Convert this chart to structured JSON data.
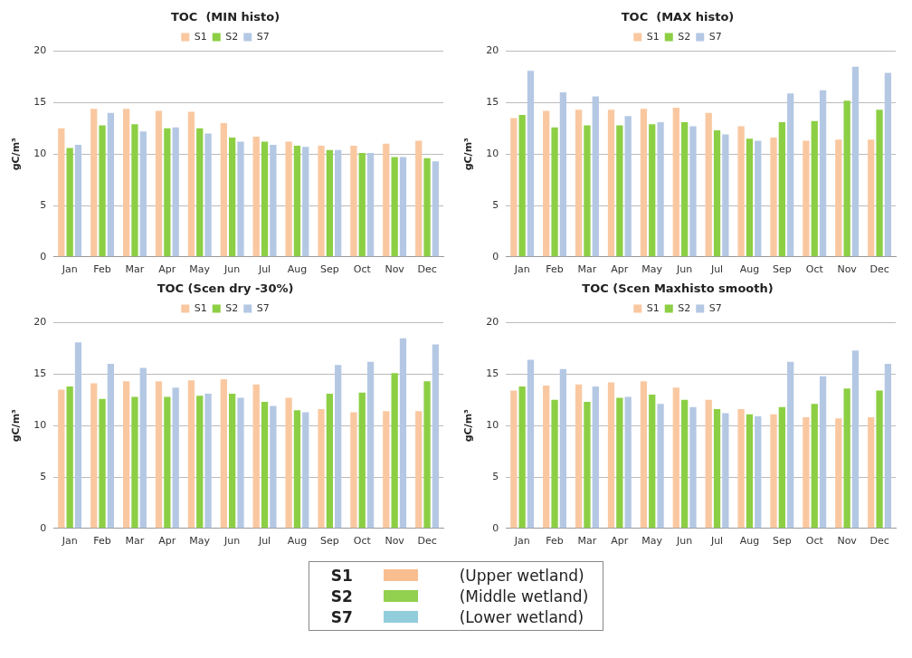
{
  "chart_data": [
    {
      "type": "bar",
      "title": "TOC  (MIN histo)",
      "ylabel": "gC/m³",
      "categories": [
        "Jan",
        "Feb",
        "Mar",
        "Apr",
        "May",
        "Jun",
        "Jul",
        "Aug",
        "Sep",
        "Oct",
        "Nov",
        "Dec"
      ],
      "ylim": [
        0,
        20
      ],
      "yticks": [
        0,
        5,
        10,
        15,
        20
      ],
      "grid": "y",
      "legend": "top",
      "series": [
        {
          "name": "S1",
          "color": "#fac8a0",
          "values": [
            12.5,
            14.4,
            14.4,
            14.2,
            14.1,
            13.0,
            11.7,
            11.2,
            10.8,
            10.8,
            11.0,
            11.3
          ]
        },
        {
          "name": "S2",
          "color": "#8ccf44",
          "values": [
            10.6,
            12.8,
            12.9,
            12.5,
            12.5,
            11.6,
            11.2,
            10.8,
            10.4,
            10.1,
            9.7,
            9.6
          ]
        },
        {
          "name": "S7",
          "color": "#b4c8e4",
          "values": [
            10.9,
            14.0,
            12.2,
            12.6,
            12.0,
            11.2,
            10.9,
            10.7,
            10.4,
            10.1,
            9.7,
            9.3
          ]
        }
      ]
    },
    {
      "type": "bar",
      "title": "TOC  (MAX histo)",
      "ylabel": "gC/m³",
      "categories": [
        "Jan",
        "Feb",
        "Mar",
        "Apr",
        "May",
        "Jun",
        "Jul",
        "Aug",
        "Sep",
        "Oct",
        "Nov",
        "Dec"
      ],
      "ylim": [
        0,
        20
      ],
      "yticks": [
        0,
        5,
        10,
        15,
        20
      ],
      "grid": "y",
      "legend": "top",
      "series": [
        {
          "name": "S1",
          "color": "#fac8a0",
          "values": [
            13.5,
            14.2,
            14.3,
            14.3,
            14.4,
            14.5,
            14.0,
            12.7,
            11.6,
            11.3,
            11.4,
            11.4
          ]
        },
        {
          "name": "S2",
          "color": "#8ccf44",
          "values": [
            13.8,
            12.6,
            12.8,
            12.8,
            12.9,
            13.1,
            12.3,
            11.5,
            13.1,
            13.2,
            15.2,
            14.3
          ]
        },
        {
          "name": "S7",
          "color": "#b4c8e4",
          "values": [
            18.1,
            16.0,
            15.6,
            13.7,
            13.1,
            12.7,
            11.9,
            11.3,
            15.9,
            16.2,
            18.5,
            17.9
          ]
        }
      ]
    },
    {
      "type": "bar",
      "title": "TOC (Scen dry -30%)",
      "ylabel": "gC/m³",
      "categories": [
        "Jan",
        "Feb",
        "Mar",
        "Apr",
        "May",
        "Jun",
        "Jul",
        "Aug",
        "Sep",
        "Oct",
        "Nov",
        "Dec"
      ],
      "ylim": [
        0,
        20
      ],
      "yticks": [
        0,
        5,
        10,
        15,
        20
      ],
      "grid": "y",
      "legend": "top",
      "series": [
        {
          "name": "S1",
          "color": "#fac8a0",
          "values": [
            13.5,
            14.1,
            14.3,
            14.3,
            14.4,
            14.5,
            14.0,
            12.7,
            11.6,
            11.3,
            11.4,
            11.4
          ]
        },
        {
          "name": "S2",
          "color": "#8ccf44",
          "values": [
            13.8,
            12.6,
            12.8,
            12.8,
            12.9,
            13.1,
            12.3,
            11.5,
            13.1,
            13.2,
            15.1,
            14.3
          ]
        },
        {
          "name": "S7",
          "color": "#b4c8e4",
          "values": [
            18.1,
            16.0,
            15.6,
            13.7,
            13.1,
            12.7,
            11.9,
            11.3,
            15.9,
            16.2,
            18.5,
            17.9
          ]
        }
      ]
    },
    {
      "type": "bar",
      "title": "TOC (Scen Maxhisto smooth)",
      "ylabel": "gC/m³",
      "categories": [
        "Jan",
        "Feb",
        "Mar",
        "Apr",
        "May",
        "Jun",
        "Jul",
        "Aug",
        "Sep",
        "Oct",
        "Nov",
        "Dec"
      ],
      "ylim": [
        0,
        20
      ],
      "yticks": [
        0,
        5,
        10,
        15,
        20
      ],
      "grid": "y",
      "legend": "top",
      "series": [
        {
          "name": "S1",
          "color": "#fac8a0",
          "values": [
            13.4,
            13.9,
            14.0,
            14.2,
            14.3,
            13.7,
            12.5,
            11.6,
            11.1,
            10.8,
            10.7,
            10.8
          ]
        },
        {
          "name": "S2",
          "color": "#8ccf44",
          "values": [
            13.8,
            12.5,
            12.3,
            12.7,
            13.0,
            12.5,
            11.6,
            11.1,
            11.8,
            12.1,
            13.6,
            13.4
          ]
        },
        {
          "name": "S7",
          "color": "#b4c8e4",
          "values": [
            16.4,
            15.5,
            13.8,
            12.8,
            12.1,
            11.8,
            11.2,
            10.9,
            16.2,
            14.8,
            17.3,
            16.0
          ]
        }
      ]
    },
    {
      "type": "other",
      "categories": [
        "S1",
        "S2",
        "S7"
      ],
      "annotations": [
        "(Upper wetland)",
        "(Middle wetland)",
        "(Lower wetland)"
      ],
      "colors": [
        "#f9be8f",
        "#92d050",
        "#92cddc"
      ]
    }
  ]
}
